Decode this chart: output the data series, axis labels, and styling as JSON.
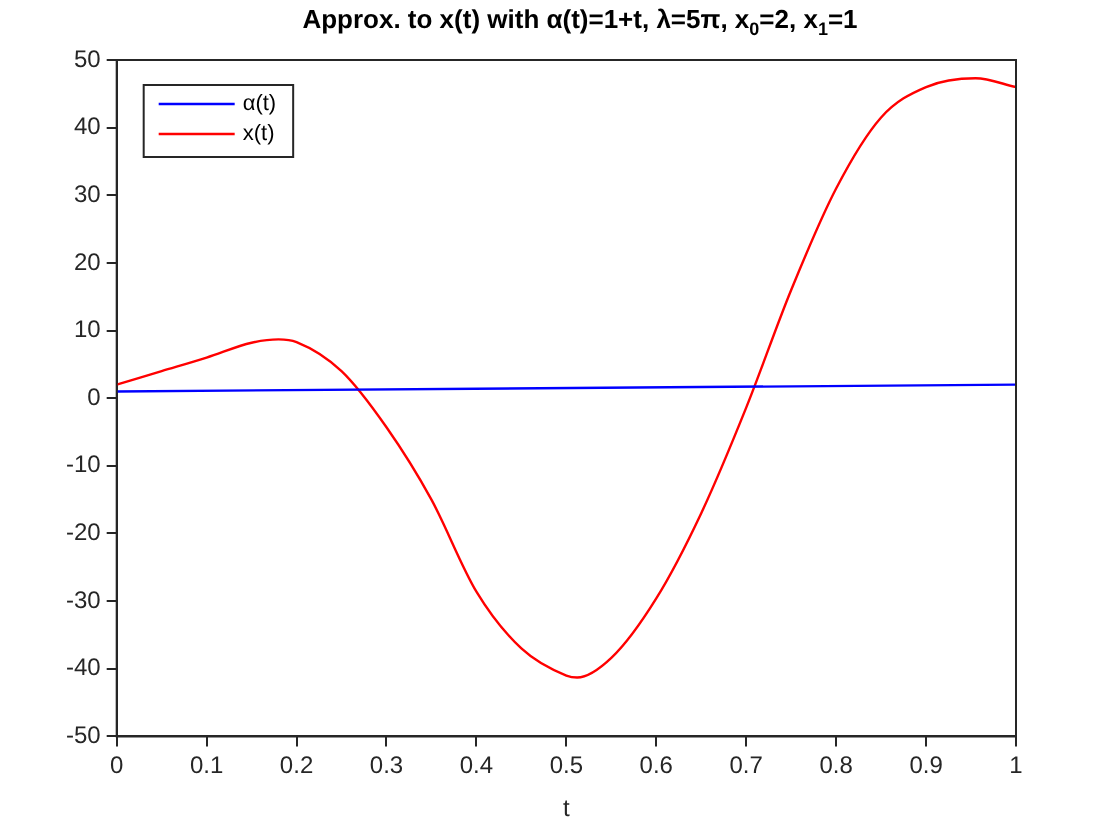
{
  "chart_data": {
    "type": "line",
    "title": "Approx. to x(t) with α(t)=1+t, λ=5π, x$_{0}$=2, x$_{1}$=1",
    "xlabel": "t",
    "xlim": [
      0,
      1
    ],
    "xticks": [
      0,
      0.1,
      0.2,
      0.3,
      0.4,
      0.5,
      0.6,
      0.7,
      0.8,
      0.9,
      1
    ],
    "ylim": [
      -50,
      50
    ],
    "yticks": [
      -50,
      -40,
      -30,
      -20,
      -10,
      0,
      10,
      20,
      30,
      40,
      50
    ],
    "grid": false,
    "legend": "top left",
    "marker": "none",
    "line_style": "solid",
    "series": [
      {
        "name": "α(t)",
        "color": "#0000ff",
        "x": [
          0,
          1
        ],
        "values": [
          1,
          2
        ]
      },
      {
        "name": "x(t)",
        "color": "#ff0000",
        "x": [
          0,
          0.05,
          0.1,
          0.15,
          0.18,
          0.2,
          0.25,
          0.3,
          0.35,
          0.4,
          0.45,
          0.5,
          0.512,
          0.55,
          0.6,
          0.65,
          0.7,
          0.75,
          0.8,
          0.85,
          0.9,
          0.955,
          1
        ],
        "values": [
          2,
          4,
          6,
          8.2,
          8.7,
          8.3,
          4,
          -4.3,
          -15,
          -28.6,
          -37,
          -41,
          -41.3,
          -38.4,
          -29.6,
          -17,
          -1.4,
          16,
          31,
          41.5,
          46,
          47.3,
          46
        ]
      }
    ]
  }
}
